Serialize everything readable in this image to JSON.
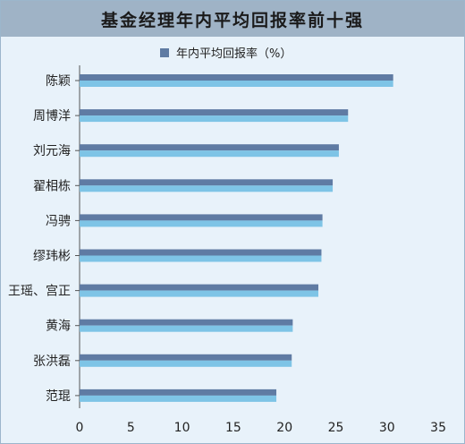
{
  "title": "基金经理年内平均回报率前十强",
  "chart_data": {
    "type": "bar",
    "orientation": "horizontal",
    "title": "基金经理年内平均回报率前十强",
    "legend": "年内平均回报率（%）",
    "legend_position": "top",
    "categories": [
      "陈颖",
      "周博洋",
      "刘元海",
      "翟相栋",
      "冯骋",
      "缪玮彬",
      "王瑶、宫正",
      "黄海",
      "张洪磊",
      "范琨"
    ],
    "values": [
      30.6,
      26.2,
      25.3,
      24.7,
      23.7,
      23.6,
      23.3,
      20.8,
      20.7,
      19.2
    ],
    "xlim": [
      0,
      35
    ],
    "xticks": [
      0,
      5,
      10,
      15,
      20,
      25,
      30,
      35
    ],
    "grid": false,
    "colors": {
      "bar_top": "#5f7ba3",
      "bar_bottom": "#7ec4e6",
      "background": "#e8f2fa",
      "title_bar": "#9fb3c6"
    }
  }
}
